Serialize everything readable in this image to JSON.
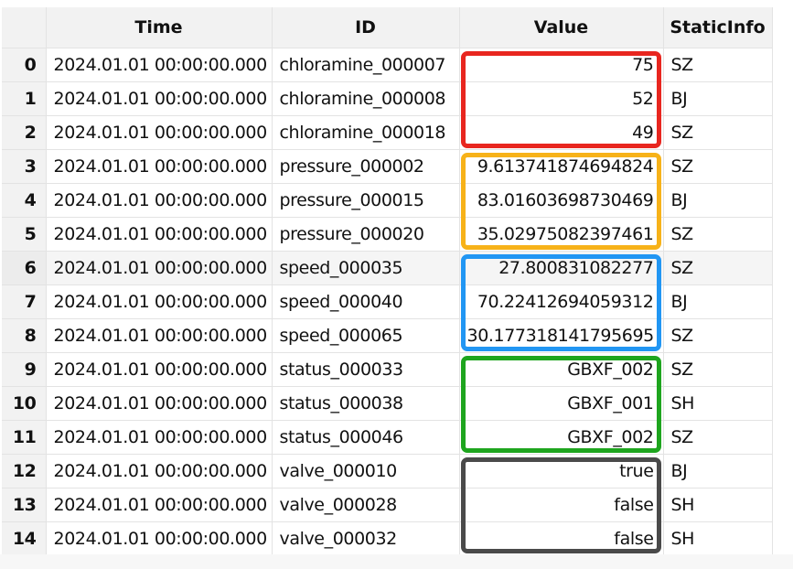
{
  "columns": [
    "",
    "Time",
    "ID",
    "Value",
    "StaticInfo"
  ],
  "rows": [
    {
      "index": "0",
      "time": "2024.01.01 00:00:00.000",
      "id": "chloramine_000007",
      "value": "75",
      "info": "SZ"
    },
    {
      "index": "1",
      "time": "2024.01.01 00:00:00.000",
      "id": "chloramine_000008",
      "value": "52",
      "info": "BJ"
    },
    {
      "index": "2",
      "time": "2024.01.01 00:00:00.000",
      "id": "chloramine_000018",
      "value": "49",
      "info": "SZ"
    },
    {
      "index": "3",
      "time": "2024.01.01 00:00:00.000",
      "id": "pressure_000002",
      "value": "9.613741874694824",
      "info": "SZ"
    },
    {
      "index": "4",
      "time": "2024.01.01 00:00:00.000",
      "id": "pressure_000015",
      "value": "83.01603698730469",
      "info": "BJ"
    },
    {
      "index": "5",
      "time": "2024.01.01 00:00:00.000",
      "id": "pressure_000020",
      "value": "35.02975082397461",
      "info": "SZ"
    },
    {
      "index": "6",
      "time": "2024.01.01 00:00:00.000",
      "id": "speed_000035",
      "value": "27.800831082277",
      "info": "SZ"
    },
    {
      "index": "7",
      "time": "2024.01.01 00:00:00.000",
      "id": "speed_000040",
      "value": "70.22412694059312",
      "info": "BJ"
    },
    {
      "index": "8",
      "time": "2024.01.01 00:00:00.000",
      "id": "speed_000065",
      "value": "30.177318141795695",
      "info": "SZ"
    },
    {
      "index": "9",
      "time": "2024.01.01 00:00:00.000",
      "id": "status_000033",
      "value": "GBXF_002",
      "info": "SZ"
    },
    {
      "index": "10",
      "time": "2024.01.01 00:00:00.000",
      "id": "status_000038",
      "value": "GBXF_001",
      "info": "SH"
    },
    {
      "index": "11",
      "time": "2024.01.01 00:00:00.000",
      "id": "status_000046",
      "value": "GBXF_002",
      "info": "SZ"
    },
    {
      "index": "12",
      "time": "2024.01.01 00:00:00.000",
      "id": "valve_000010",
      "value": "true",
      "info": "BJ"
    },
    {
      "index": "13",
      "time": "2024.01.01 00:00:00.000",
      "id": "valve_000028",
      "value": "false",
      "info": "SH"
    },
    {
      "index": "14",
      "time": "2024.01.01 00:00:00.000",
      "id": "valve_000032",
      "value": "false",
      "info": "SH"
    }
  ],
  "highlight_groups": [
    {
      "name": "chloramine",
      "color": "#e8261f",
      "first_row": 0,
      "last_row": 2
    },
    {
      "name": "pressure",
      "color": "#f7b219",
      "first_row": 3,
      "last_row": 5
    },
    {
      "name": "speed",
      "color": "#2196f3",
      "first_row": 6,
      "last_row": 8
    },
    {
      "name": "status",
      "color": "#1ea51e",
      "first_row": 9,
      "last_row": 11
    },
    {
      "name": "valve",
      "color": "#4a4a4a",
      "first_row": 12,
      "last_row": 14
    }
  ],
  "hovered_row": 6
}
